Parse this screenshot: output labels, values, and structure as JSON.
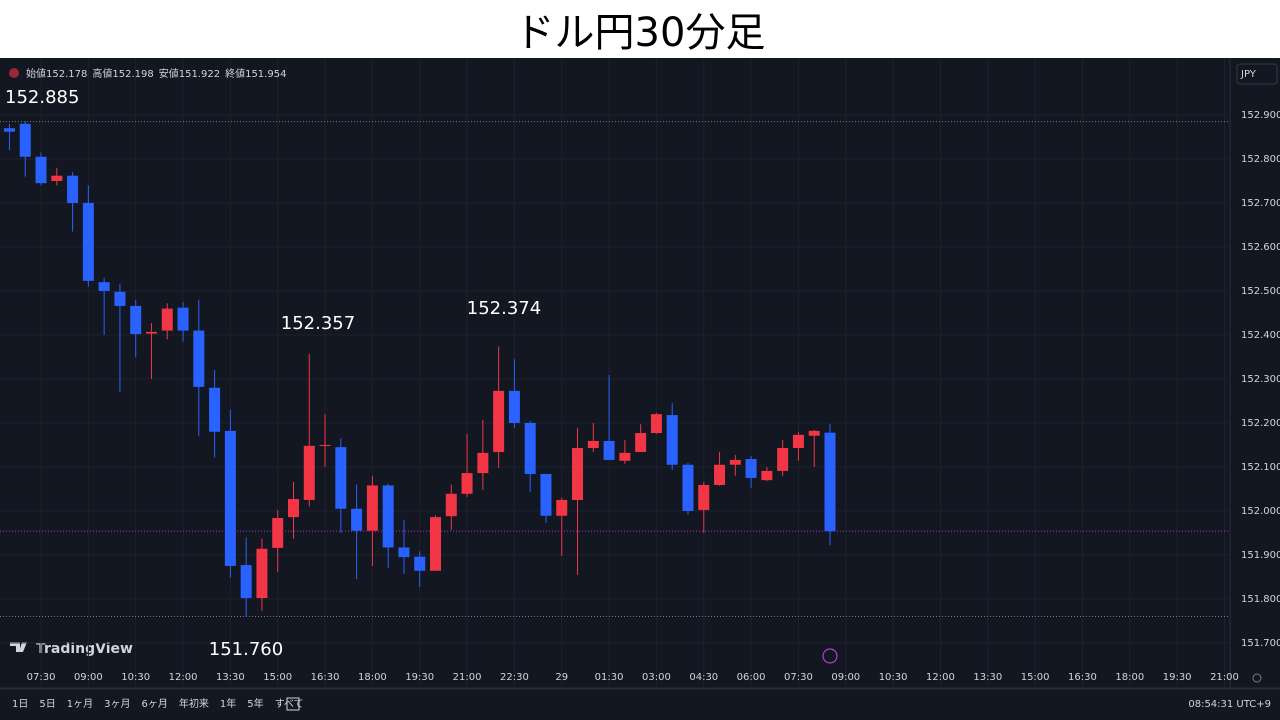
{
  "chart_data": {
    "type": "candlestick",
    "title": "ドル円30分足",
    "open": [
      152.87,
      152.88,
      152.805,
      152.75,
      152.762,
      152.7,
      152.52,
      152.498,
      152.466,
      152.403,
      152.41,
      152.462,
      152.41,
      152.28,
      152.182,
      151.877,
      151.802,
      151.916,
      151.986,
      152.025,
      152.148,
      152.145,
      152.005,
      151.955,
      152.058,
      151.917,
      151.896,
      151.864,
      151.988,
      152.039,
      152.086,
      152.134,
      152.273,
      152.2,
      152.084,
      151.989,
      152.025,
      152.143,
      152.159,
      152.114,
      152.134,
      152.177,
      152.218,
      152.105,
      152.002,
      152.059,
      152.105,
      152.118,
      152.07,
      152.091,
      152.143,
      152.171,
      152.178
    ],
    "high": [
      152.88,
      152.885,
      152.815,
      152.78,
      152.77,
      152.74,
      152.53,
      152.516,
      152.48,
      152.427,
      152.472,
      152.475,
      152.48,
      152.32,
      152.23,
      151.94,
      151.937,
      152.002,
      152.066,
      152.357,
      152.22,
      152.165,
      152.06,
      152.08,
      152.062,
      151.98,
      151.908,
      151.99,
      152.06,
      152.175,
      152.207,
      152.374,
      152.345,
      152.205,
      152.084,
      152.03,
      152.189,
      152.2,
      152.309,
      152.161,
      152.197,
      152.223,
      152.245,
      152.109,
      152.066,
      152.134,
      152.127,
      152.125,
      152.1,
      152.161,
      152.18,
      152.184,
      152.198
    ],
    "low": [
      152.82,
      152.76,
      152.74,
      152.74,
      152.635,
      152.51,
      152.4,
      152.27,
      152.35,
      152.3,
      152.39,
      152.385,
      152.17,
      152.122,
      151.848,
      151.76,
      151.773,
      151.861,
      151.937,
      152.01,
      152.1,
      151.95,
      151.845,
      151.875,
      151.87,
      151.857,
      151.827,
      151.864,
      151.957,
      152.032,
      152.048,
      152.098,
      152.189,
      152.043,
      151.973,
      151.898,
      151.855,
      152.134,
      152.116,
      152.107,
      152.134,
      152.175,
      152.093,
      151.991,
      151.95,
      152.057,
      152.08,
      152.052,
      152.068,
      152.08,
      152.114,
      152.1,
      151.922
    ],
    "close": [
      152.862,
      152.805,
      152.745,
      152.762,
      152.7,
      152.523,
      152.5,
      152.466,
      152.402,
      152.407,
      152.46,
      152.41,
      152.282,
      152.18,
      151.875,
      151.802,
      151.914,
      151.984,
      152.027,
      152.148,
      152.15,
      152.005,
      151.955,
      152.058,
      151.917,
      151.895,
      151.864,
      151.986,
      152.039,
      152.086,
      152.132,
      152.273,
      152.2,
      152.084,
      151.989,
      152.025,
      152.143,
      152.159,
      152.116,
      152.132,
      152.177,
      152.22,
      152.105,
      152.0,
      152.059,
      152.105,
      152.116,
      152.075,
      152.091,
      152.143,
      152.173,
      152.182,
      151.954
    ],
    "up_color": "#f23645",
    "down_color": "#2962ff",
    "legend_labels": [
      "始値",
      "高値",
      "安値",
      "終値"
    ],
    "annotations": [
      "152.885",
      "152.357",
      "152.374",
      "151.760"
    ],
    "ylim": [
      151.643,
      153.025
    ],
    "yticks": [
      {
        "value": 152.9,
        "label": "152.900"
      },
      {
        "value": 152.8,
        "label": "152.800"
      },
      {
        "value": 152.7,
        "label": "152.700"
      },
      {
        "value": 152.6,
        "label": "152.600"
      },
      {
        "value": 152.5,
        "label": "152.500"
      },
      {
        "value": 152.4,
        "label": "152.400"
      },
      {
        "value": 152.3,
        "label": "152.300"
      },
      {
        "value": 152.2,
        "label": "152.200"
      },
      {
        "value": 152.1,
        "label": "152.100"
      },
      {
        "value": 152.0,
        "label": "152.000"
      },
      {
        "value": 151.9,
        "label": "151.900"
      },
      {
        "value": 151.8,
        "label": "151.800"
      },
      {
        "value": 151.7,
        "label": "151.700"
      }
    ],
    "xlim": [
      -0.6,
      77.35
    ],
    "xticks": [
      {
        "value": 2,
        "label": "07:30"
      },
      {
        "value": 5,
        "label": "09:00"
      },
      {
        "value": 8,
        "label": "10:30"
      },
      {
        "value": 11,
        "label": "12:00"
      },
      {
        "value": 14,
        "label": "13:30"
      },
      {
        "value": 17,
        "label": "15:00"
      },
      {
        "value": 20,
        "label": "16:30"
      },
      {
        "value": 23,
        "label": "18:00"
      },
      {
        "value": 26,
        "label": "19:30"
      },
      {
        "value": 29,
        "label": "21:00"
      },
      {
        "value": 32,
        "label": "22:30"
      },
      {
        "value": 35,
        "label": "29"
      },
      {
        "value": 38,
        "label": "01:30"
      },
      {
        "value": 41,
        "label": "03:00"
      },
      {
        "value": 44,
        "label": "04:30"
      },
      {
        "value": 47,
        "label": "06:00"
      },
      {
        "value": 50,
        "label": "07:30"
      },
      {
        "value": 53,
        "label": "09:00"
      },
      {
        "value": 56,
        "label": "10:30"
      },
      {
        "value": 59,
        "label": "12:00"
      },
      {
        "value": 62,
        "label": "13:30"
      },
      {
        "value": 65,
        "label": "15:00"
      },
      {
        "value": 68,
        "label": "16:30"
      },
      {
        "value": 71,
        "label": "18:00"
      },
      {
        "value": 74,
        "label": "19:30"
      },
      {
        "value": 77,
        "label": "21:00"
      }
    ],
    "grid": true
  },
  "currency": "JPY",
  "brand": "TradingView",
  "toolbar": {
    "ranges": [
      "1日",
      "5日",
      "1ヶ月",
      "3ヶ月",
      "6ヶ月",
      "年初来",
      "1年",
      "5年",
      "すべて"
    ],
    "clock": "08:54:31 UTC+9"
  }
}
